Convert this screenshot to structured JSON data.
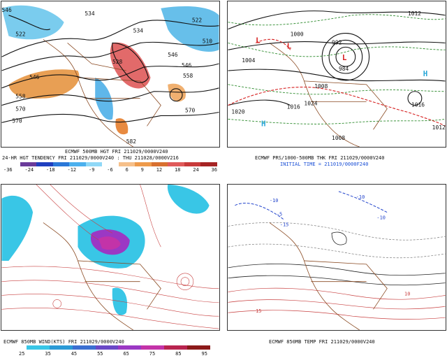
{
  "panels": {
    "hgt500": {
      "title": "ECMWF 500MB HGT FRI 211029/0000V240",
      "subtitle": "24-HR HGT TENDENCY FRI 211029/0000V240 : THU 211028/0000V216",
      "labels": [
        "522",
        "534",
        "546",
        "558",
        "570",
        "546",
        "522",
        "510",
        "528",
        "534",
        "546",
        "558",
        "570",
        "582",
        "570",
        "546"
      ],
      "colorbar_ticks": [
        "-36",
        "-24",
        "-18",
        "-12",
        "-9",
        "-6",
        "6",
        "9",
        "12",
        "18",
        "24",
        "36"
      ],
      "colorbar_colors": [
        "#ffffff",
        "#6a3b9a",
        "#1f3fbf",
        "#2a78d8",
        "#4bb0ee",
        "#8fd8f7",
        "#ffffff",
        "#f6c08a",
        "#ee9a4a",
        "#d8702f",
        "#e05a5a",
        "#c83a3a",
        "#a62424"
      ]
    },
    "pres": {
      "title": "ECMWF PRS/1000-500MB THK FRI 211029/0000V240",
      "initial_time": "INITIAL TIME = 211019/0000F240",
      "labels": [
        "1000",
        "992",
        "984",
        "1004",
        "1008",
        "1016",
        "1020",
        "1024",
        "1012",
        "1016",
        "1008",
        "1012"
      ],
      "high_letter": "H",
      "low_letter": "L"
    },
    "wind850": {
      "title": "ECMWF 850MB WIND(KTS) FRI 211029/0000V240",
      "colorbar_ticks": [
        "25",
        "35",
        "45",
        "55",
        "65",
        "75",
        "85",
        "95"
      ],
      "colorbar_colors": [
        "#ffffff",
        "#39c6e6",
        "#2b9ad6",
        "#3b6fd1",
        "#6a49c7",
        "#9b38c4",
        "#c333a8",
        "#b8244f",
        "#8c1a1a"
      ]
    },
    "temp850": {
      "title": "ECMWF 850MB TEMP FRI 211029/0000V240",
      "labels": [
        "-10",
        "-10",
        "-5",
        "-15",
        "-10",
        "10",
        "15"
      ]
    }
  }
}
